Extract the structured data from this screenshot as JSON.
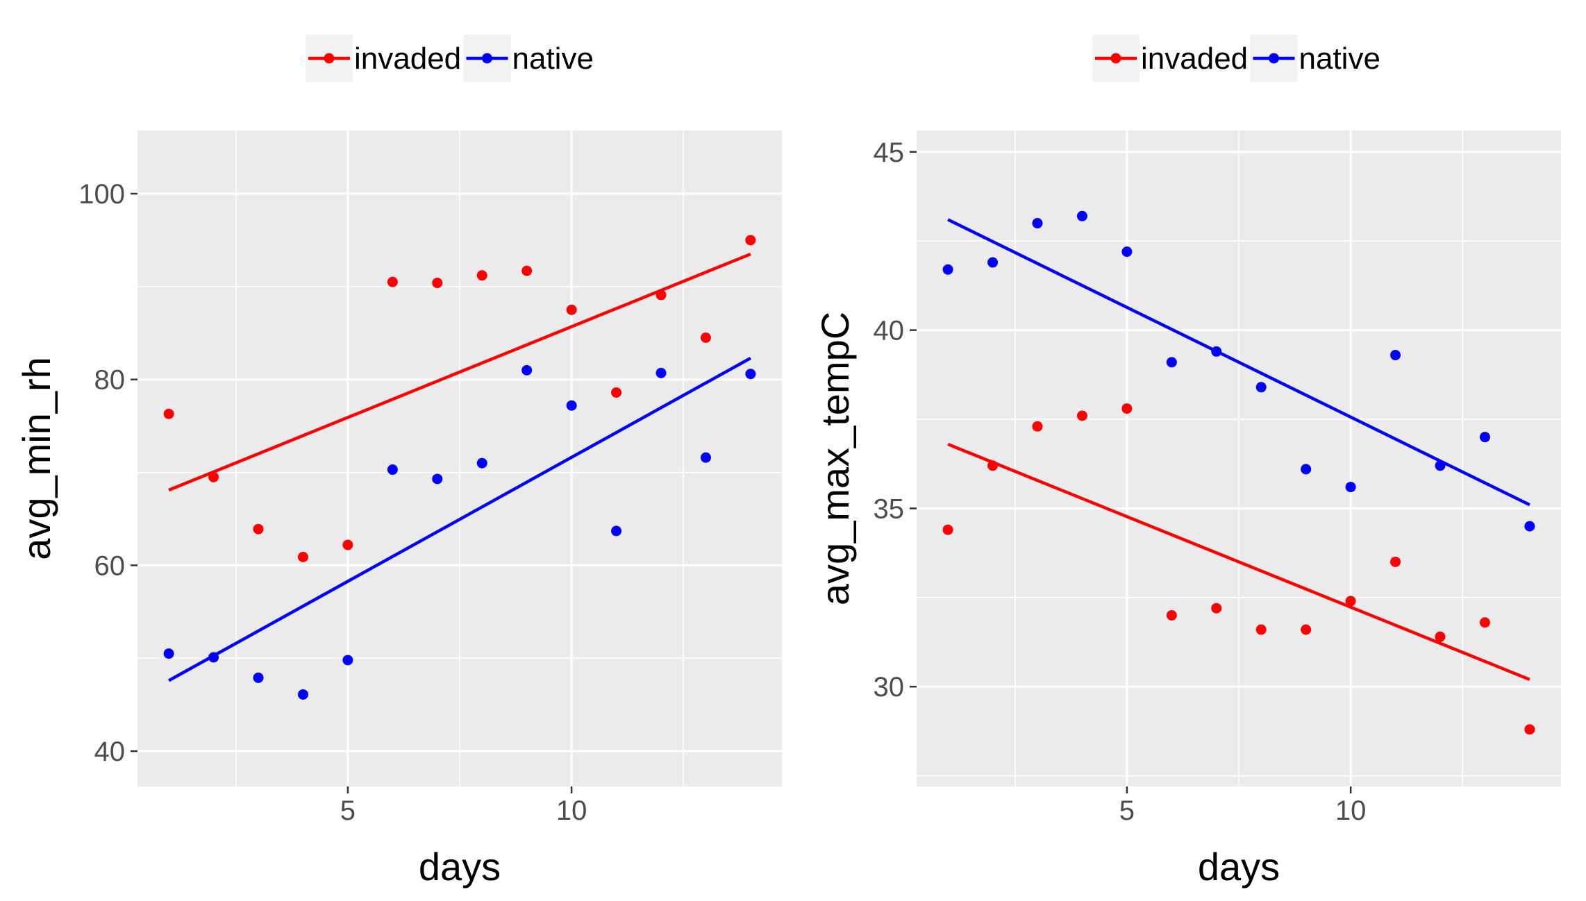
{
  "colors": {
    "invaded": "#FF0000",
    "native": "#0000FF",
    "panel": "#EBEBEB",
    "grid": "#FFFFFF",
    "text": "#4D4D4D",
    "title": "#000000"
  },
  "chart_data": [
    {
      "type": "scatter",
      "xlabel": "days",
      "ylabel": "avg_min_rh",
      "xlim": [
        0.3,
        14.7
      ],
      "ylim": [
        36.2,
        106.8
      ],
      "xticks": [
        5,
        10
      ],
      "yticks": [
        40,
        60,
        80,
        100
      ],
      "grid": true,
      "legend_position": "top",
      "legend": [
        "invaded",
        "native"
      ],
      "series": [
        {
          "name": "invaded",
          "x": [
            1,
            2,
            3,
            4,
            5,
            6,
            7,
            8,
            9,
            10,
            11,
            12,
            13,
            14
          ],
          "y": [
            76.3,
            69.5,
            63.9,
            60.9,
            62.2,
            90.5,
            90.4,
            91.2,
            91.7,
            87.5,
            78.6,
            89.1,
            84.5,
            95.0
          ],
          "trend": [
            [
              1,
              68.1
            ],
            [
              14,
              93.5
            ]
          ]
        },
        {
          "name": "native",
          "x": [
            1,
            2,
            3,
            4,
            5,
            6,
            7,
            8,
            9,
            10,
            11,
            12,
            13,
            14
          ],
          "y": [
            50.5,
            50.1,
            47.9,
            46.1,
            49.8,
            70.3,
            69.3,
            71.0,
            81.0,
            77.2,
            63.7,
            80.7,
            71.6,
            80.6
          ],
          "trend": [
            [
              1,
              47.6
            ],
            [
              14,
              82.3
            ]
          ]
        }
      ]
    },
    {
      "type": "scatter",
      "xlabel": "days",
      "ylabel": "avg_max_tempC",
      "xlim": [
        0.3,
        14.7
      ],
      "ylim": [
        27.2,
        45.6
      ],
      "xticks": [
        5,
        10
      ],
      "yticks": [
        30,
        35,
        40,
        45
      ],
      "grid": true,
      "legend_position": "top",
      "legend": [
        "invaded",
        "native"
      ],
      "series": [
        {
          "name": "invaded",
          "x": [
            1,
            2,
            3,
            4,
            5,
            6,
            7,
            8,
            9,
            10,
            11,
            12,
            13,
            14
          ],
          "y": [
            34.4,
            36.2,
            37.3,
            37.6,
            37.8,
            32.0,
            32.2,
            31.6,
            31.6,
            32.4,
            33.5,
            31.4,
            31.8,
            28.8
          ],
          "trend": [
            [
              1,
              36.8
            ],
            [
              14,
              30.2
            ]
          ]
        },
        {
          "name": "native",
          "x": [
            1,
            2,
            3,
            4,
            5,
            6,
            7,
            8,
            9,
            10,
            11,
            12,
            13,
            14
          ],
          "y": [
            41.7,
            41.9,
            43.0,
            43.2,
            42.2,
            39.1,
            39.4,
            38.4,
            36.1,
            35.6,
            39.3,
            36.2,
            37.0,
            34.5
          ],
          "trend": [
            [
              1,
              43.1
            ],
            [
              14,
              35.1
            ]
          ]
        }
      ]
    }
  ]
}
